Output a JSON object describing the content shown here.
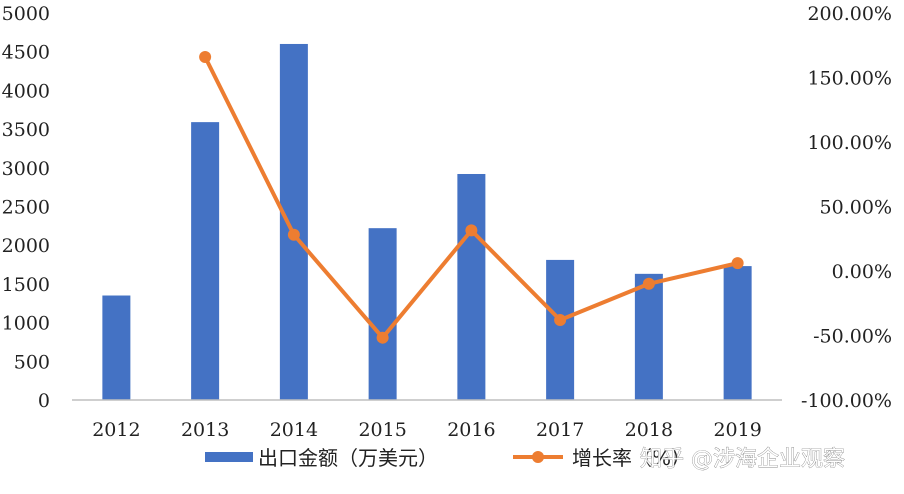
{
  "chart_data": {
    "type": "bar+line",
    "categories": [
      "2012",
      "2013",
      "2014",
      "2015",
      "2016",
      "2017",
      "2018",
      "2019"
    ],
    "series": [
      {
        "name": "出口金额（万美元）",
        "type": "bar",
        "axis": "left",
        "color": "#4472C4",
        "values": [
          1350,
          3590,
          4600,
          2220,
          2920,
          1810,
          1630,
          1730
        ]
      },
      {
        "name": "增长率（%）",
        "type": "line",
        "axis": "right",
        "color": "#ED7D31",
        "values": [
          null,
          165.9,
          28.1,
          -51.7,
          31.5,
          -38.0,
          -9.9,
          6.1
        ]
      }
    ],
    "left_axis": {
      "min": 0,
      "max": 5000,
      "ticks": [
        "0",
        "500",
        "1000",
        "1500",
        "2000",
        "2500",
        "3000",
        "3500",
        "4000",
        "4500",
        "5000"
      ]
    },
    "right_axis": {
      "min": -100,
      "max": 200,
      "ticks": [
        "-100.00%",
        "-50.00%",
        "0.00%",
        "50.00%",
        "100.00%",
        "150.00%",
        "200.00%"
      ]
    },
    "legend_position": "bottom",
    "grid": false
  },
  "watermark": "知乎 @涉海企业观察"
}
